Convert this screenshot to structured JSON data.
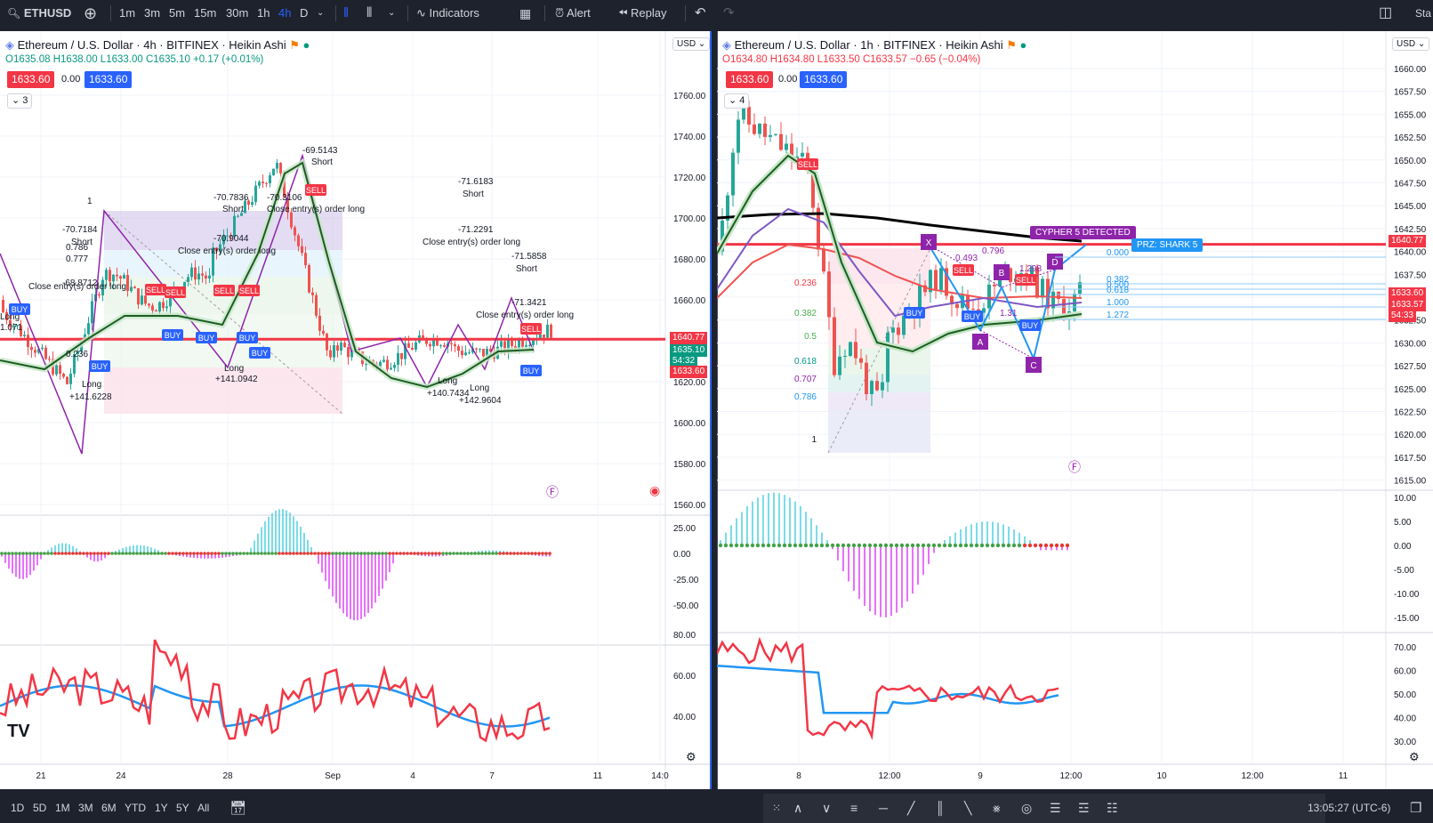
{
  "toolbar": {
    "symbol": "ETHUSD",
    "intervals": [
      "1m",
      "3m",
      "5m",
      "15m",
      "30m",
      "1h",
      "4h",
      "D"
    ],
    "active_interval": "4h",
    "indicators_label": "Indicators",
    "alert_label": "Alert",
    "replay_label": "Replay",
    "corner_label": "Sta"
  },
  "left_chart": {
    "title": "Ethereum / U.S. Dollar · 4h · BITFINEX · Heikin Ashi",
    "ohlc": {
      "o": "O1635.08",
      "h": "H1638.00",
      "l": "L1633.00",
      "c": "C1635.10",
      "chg": "+0.17 (+0.01%)"
    },
    "sell_price": "1633.60",
    "spread": "0.00",
    "buy_price": "1633.60",
    "collapse_count": "3",
    "currency": "USD",
    "price_axis": [
      "1760.00",
      "1740.00",
      "1720.00",
      "1700.00",
      "1680.00",
      "1660.00",
      "1640.00",
      "1620.00",
      "1600.00",
      "1580.00",
      "1560.00"
    ],
    "macd_axis": [
      "25.00",
      "0.00",
      "-25.00",
      "-50.00"
    ],
    "rsi_axis": [
      "80.00",
      "60.00",
      "40.00"
    ],
    "time_axis": [
      "21",
      "24",
      "28",
      "Sep",
      "4",
      "7",
      "11",
      "14:0"
    ],
    "tags": {
      "red_line": "1640.77",
      "last": "1635.10",
      "countdown": "54:32",
      "bid": "1633.60"
    },
    "annotations": [
      {
        "text": "-70.7184"
      },
      {
        "text": "Short"
      },
      {
        "text": "-70.7836"
      },
      {
        "text": "Short"
      },
      {
        "text": "-69.5143"
      },
      {
        "text": "Short"
      },
      {
        "text": "-70.3106"
      },
      {
        "text": "Close entry(s) order long"
      },
      {
        "text": "-70.9044"
      },
      {
        "text": "Close entry(s) order long"
      },
      {
        "text": "-68.8712"
      },
      {
        "text": "Close entry(s) order long"
      },
      {
        "text": "-71.6183"
      },
      {
        "text": "Short"
      },
      {
        "text": "-71.2291"
      },
      {
        "text": "Close entry(s) order long"
      },
      {
        "text": "-71.5858"
      },
      {
        "text": "Short"
      },
      {
        "text": "-71.3421"
      },
      {
        "text": "Close entry(s) order long"
      },
      {
        "text": "Long"
      },
      {
        "text": "+141.6228"
      },
      {
        "text": "Long"
      },
      {
        "text": "+141.0942"
      },
      {
        "text": "Long"
      },
      {
        "text": "+140.7434"
      },
      {
        "text": "Long"
      },
      {
        "text": "+142.9604"
      },
      {
        "text": "Long"
      },
      {
        "text": "1.071"
      },
      {
        "text": "1"
      },
      {
        "text": "0.777"
      },
      {
        "text": "0.236"
      },
      {
        "text": "0.786"
      }
    ],
    "signals": [
      "BUY",
      "BUY",
      "BUY",
      "BUY",
      "BUY",
      "BUY",
      "BUY",
      "SELL",
      "SELL",
      "SELL",
      "SELL",
      "SELL",
      "SELL"
    ]
  },
  "right_chart": {
    "title": "Ethereum / U.S. Dollar · 1h · BITFINEX · Heikin Ashi",
    "ohlc": {
      "o": "O1634.80",
      "h": "H1634.80",
      "l": "L1633.50",
      "c": "C1633.57",
      "chg": "−0.65 (−0.04%)"
    },
    "sell_price": "1633.60",
    "spread": "0.00",
    "buy_price": "1633.60",
    "collapse_count": "4",
    "currency": "USD",
    "price_axis": [
      "1660.00",
      "1657.50",
      "1655.00",
      "1652.50",
      "1650.00",
      "1647.50",
      "1645.00",
      "1642.50",
      "1640.00",
      "1637.50",
      "1635.00",
      "1632.50",
      "1630.00",
      "1627.50",
      "1625.00",
      "1622.50",
      "1620.00",
      "1617.50",
      "1615.00"
    ],
    "macd_axis": [
      "10.00",
      "5.00",
      "0.00",
      "-5.00",
      "-10.00",
      "-15.00"
    ],
    "rsi_axis": [
      "70.00",
      "60.00",
      "50.00",
      "40.00",
      "30.00"
    ],
    "time_axis": [
      "8",
      "12:00",
      "9",
      "12:00",
      "10",
      "12:00",
      "11"
    ],
    "tags": {
      "red_line": "1640.77",
      "bid": "1633.60",
      "last": "1633.57",
      "countdown": "54:33"
    },
    "cypher_label": "CYPHER 5 DETECTED",
    "prz_label": "PRZ: SHARK 5",
    "points": [
      "X",
      "A",
      "B",
      "C",
      "D"
    ],
    "fib_left": [
      "0.236",
      "0.382",
      "0.5",
      "0.618",
      "0.707",
      "0.786",
      "1"
    ],
    "fib_right": [
      "0.000",
      "0.382",
      "0.500",
      "0.618",
      "1.000",
      "1.272"
    ],
    "ratios": [
      "0.493",
      "0.796",
      "1.298",
      "1.31"
    ],
    "signals": [
      "SELL",
      "SELL",
      "SELL",
      "BUY",
      "BUY",
      "BUY"
    ]
  },
  "bottombar": {
    "ranges": [
      "1D",
      "5D",
      "1M",
      "3M",
      "6M",
      "YTD",
      "1Y",
      "5Y",
      "All"
    ],
    "clock": "13:05:27 (UTC-6)"
  },
  "colors": {
    "bg_dark": "#1e222d",
    "accent": "#2962ff",
    "red": "#f23645",
    "green": "#089981",
    "purple": "#8e24aa"
  }
}
